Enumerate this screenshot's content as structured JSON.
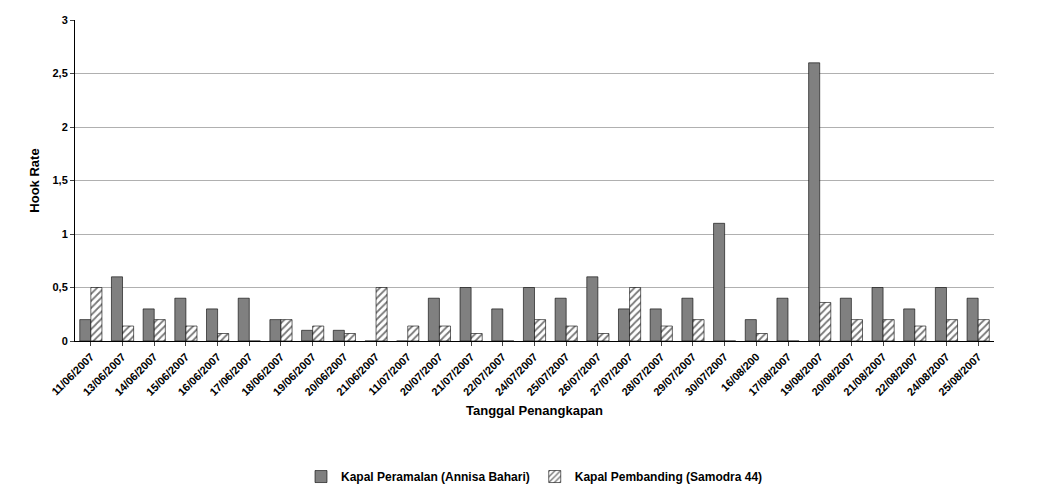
{
  "chart_data": {
    "type": "bar",
    "x_label": "Tanggal Penangkapan",
    "y_label": "Hook Rate",
    "categories": [
      "11/06/2007",
      "13/06/2007",
      "14/06/2007",
      "15/06/2007",
      "16/06/2007",
      "17/06/2007",
      "18/06/2007",
      "19/06/2007",
      "20/06/2007",
      "21/06/2007",
      "11/07/2007",
      "20/07/2007",
      "21/07/2007",
      "22/07/2007",
      "24/07/2007",
      "25/07/2007",
      "26/07/2007",
      "27/07/2007",
      "28/07/2007",
      "29/07/2007",
      "30/07/2007",
      "16/08/200",
      "17/08/2007",
      "19/08/2007",
      "20/08/2007",
      "21/08/2007",
      "22/08/2007",
      "24/08/2007",
      "25/08/2007"
    ],
    "series": [
      {
        "name": "Kapal Peramalan (Annisa Bahari)",
        "color": "#808080",
        "values": [
          0.2,
          0.6,
          0.3,
          0.4,
          0.3,
          0.4,
          0.2,
          0.1,
          0.1,
          0,
          0,
          0.4,
          0.5,
          0.3,
          0.5,
          0.4,
          0.6,
          0.3,
          0.3,
          0.4,
          1.1,
          0.2,
          0.4,
          2.6,
          0.4,
          0.5,
          0.3,
          0.5,
          0.4
        ]
      },
      {
        "name": "Kapal Pembanding (Samodra 44)",
        "color": "#777777",
        "marker": "hatch",
        "values": [
          0.5,
          0.14,
          0.2,
          0.14,
          0.07,
          0,
          0.2,
          0.14,
          0.07,
          0.5,
          0.14,
          0.14,
          0.07,
          0,
          0.2,
          0.14,
          0.07,
          0.5,
          0.14,
          0.2,
          0,
          0.07,
          0,
          0.36,
          0.2,
          0.2,
          0.14,
          0.2,
          0.2
        ]
      }
    ],
    "ylim": [
      0,
      3
    ],
    "yticks": [
      0,
      {
        "value": 0.5,
        "label": "0,5"
      },
      1,
      {
        "value": 1.5,
        "label": "1,5"
      },
      2,
      {
        "value": 2.5,
        "label": "2,5"
      },
      3
    ],
    "grid": true,
    "legend": "bottom"
  }
}
